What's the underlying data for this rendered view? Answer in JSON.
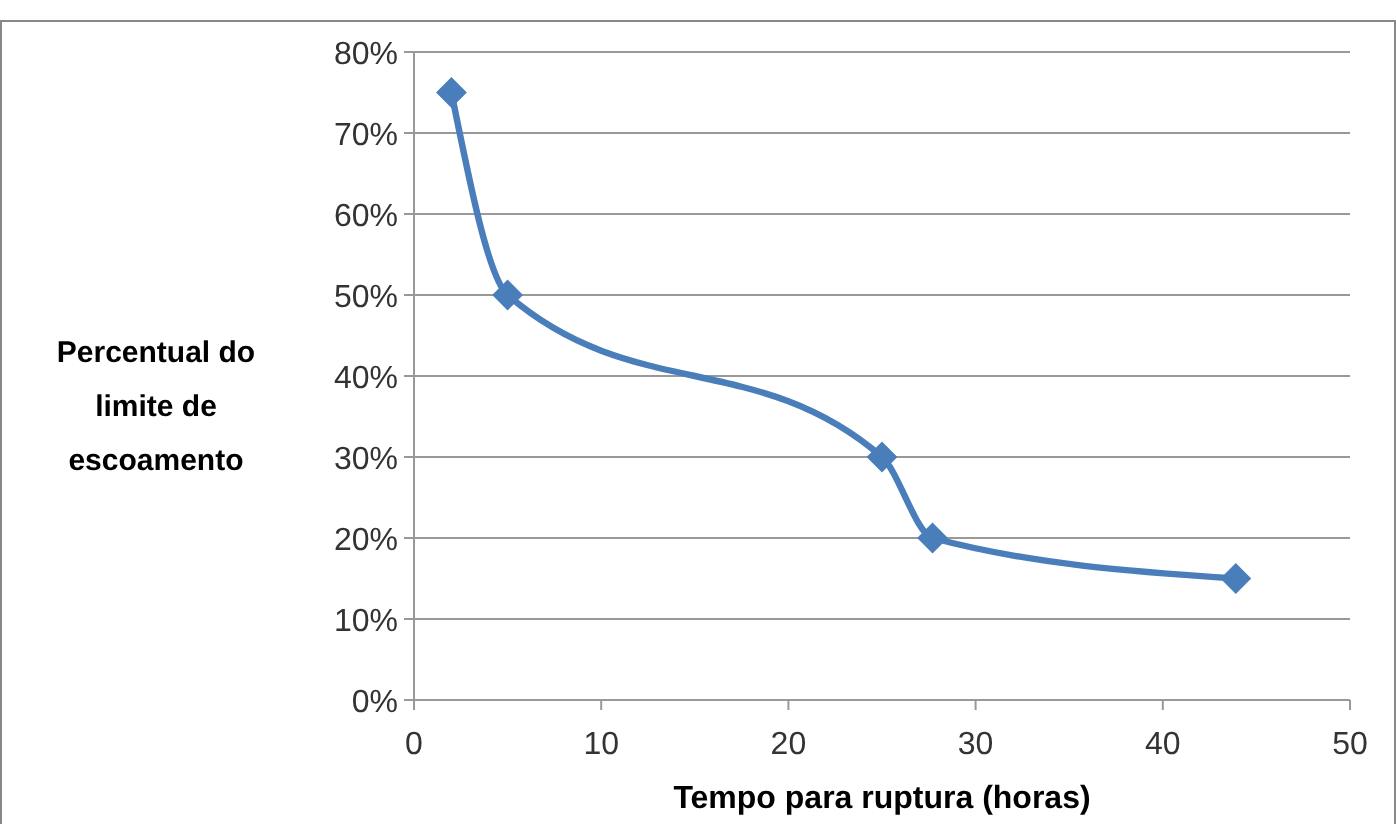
{
  "chart_data": {
    "type": "line",
    "xlabel": "Tempo para ruptura (horas)",
    "ylabel": "Percentual do limite de escoamento",
    "x": [
      2,
      5,
      25,
      27.7,
      43.9
    ],
    "series": [
      {
        "color": "#4a7ebb",
        "values": [
          75,
          50,
          30,
          20,
          15
        ]
      }
    ],
    "xlim": [
      0,
      50
    ],
    "xticks": [
      0,
      10,
      20,
      30,
      40,
      50
    ],
    "ylim": [
      0,
      80
    ],
    "yticks": [
      {
        "value": 0,
        "label": "0%"
      },
      {
        "value": 10,
        "label": "10%"
      },
      {
        "value": 20,
        "label": "20%"
      },
      {
        "value": 30,
        "label": "30%"
      },
      {
        "value": 40,
        "label": "40%"
      },
      {
        "value": 50,
        "label": "50%"
      },
      {
        "value": 60,
        "label": "60%"
      },
      {
        "value": 70,
        "label": "70%"
      },
      {
        "value": 80,
        "label": "80%"
      }
    ],
    "grid": "y",
    "marker": "diamond",
    "line_style": "solid"
  }
}
